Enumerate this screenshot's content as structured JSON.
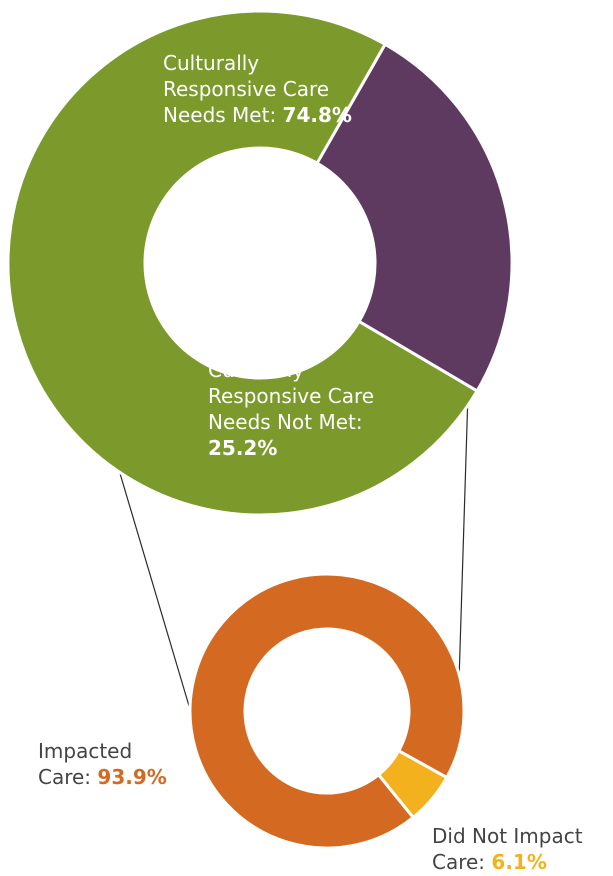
{
  "chart_data": [
    {
      "type": "pie",
      "variant": "donut",
      "slices": [
        {
          "label": "Culturally Responsive Care Needs Met",
          "value": 74.8,
          "value_label": "74.8%",
          "color": "#7c992b"
        },
        {
          "label": "Culturally Responsive Care Needs Not Met",
          "value": 25.2,
          "value_label": "25.2%",
          "color": "#5f3a60"
        }
      ]
    },
    {
      "type": "pie",
      "variant": "donut",
      "breakdown_of": "Culturally Responsive Care Needs Not Met",
      "slices": [
        {
          "label": "Impacted Care",
          "value": 93.9,
          "value_label": "93.9%",
          "color": "#d46a22"
        },
        {
          "label": "Did Not Impact Care",
          "value": 6.1,
          "value_label": "6.1%",
          "color": "#f3b11d"
        }
      ]
    }
  ],
  "labels": {
    "met_line1": "Culturally",
    "met_line2": "Responsive Care",
    "met_line3": "Needs Met: ",
    "met_value": "74.8%",
    "notmet_line1": "Culturally",
    "notmet_line2": "Responsive Care",
    "notmet_line3": "Needs Not Met:",
    "notmet_value": "25.2%",
    "impacted_line1": "Impacted",
    "impacted_line2": "Care: ",
    "impacted_value": "93.9%",
    "didnot_line1": "Did Not Impact",
    "didnot_line2": "Care: ",
    "didnot_value": "6.1%"
  }
}
